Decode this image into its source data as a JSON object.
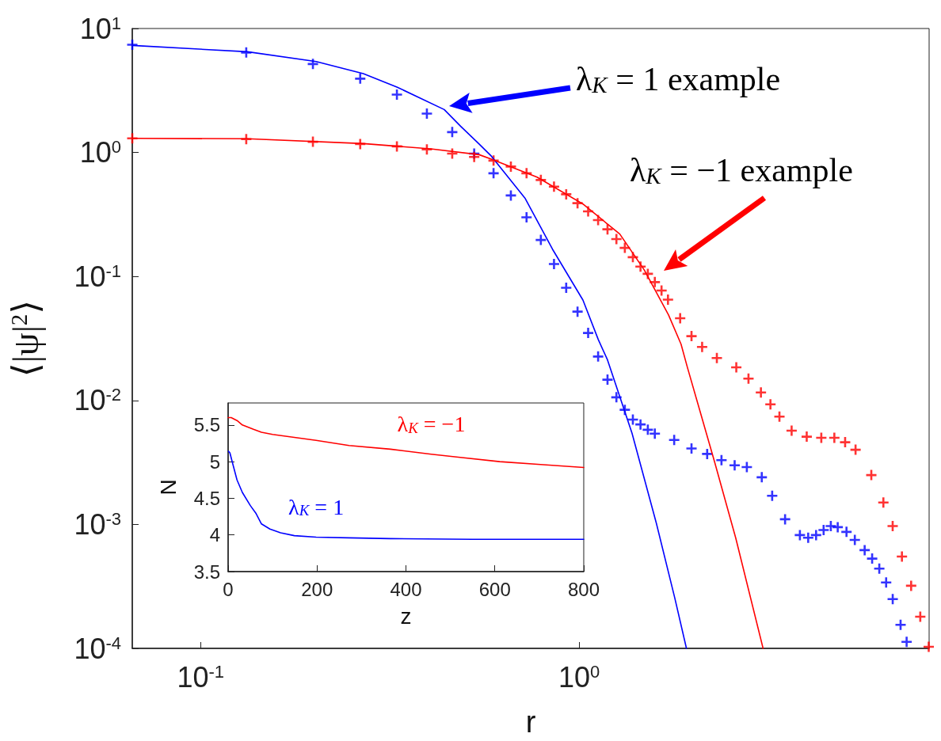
{
  "chart_data": [
    {
      "type": "line",
      "xlabel": "r",
      "ylabel": "⟨|ψ|$^{2}$⟩",
      "log": "xy",
      "grid": false,
      "xlim": [
        0.066,
        8.4
      ],
      "xticks": [
        {
          "value": 0.1,
          "label": "10$^{-1}$"
        },
        {
          "value": 1,
          "label": "10$^{0}$"
        }
      ],
      "ylim": [
        0.0001,
        10
      ],
      "yticks": [
        {
          "value": 0.0001,
          "label": "10$^{-4}$"
        },
        {
          "value": 0.001,
          "label": "10$^{-3}$"
        },
        {
          "value": 0.01,
          "label": "10$^{-2}$"
        },
        {
          "value": 0.1,
          "label": "10$^{-1}$"
        },
        {
          "value": 1,
          "label": "10$^{0}$"
        },
        {
          "value": 10,
          "label": "10$^{1}$"
        }
      ],
      "annotations": [
        "λ$_{K}$ = 1 example",
        "λ$_{K}$ = −1 example"
      ],
      "series": [
        {
          "type": "line",
          "color": "#0000ff",
          "marker": "none",
          "x": [
            0.066,
            0.133,
            0.202,
            0.269,
            0.33,
            0.44,
            0.486,
            0.544,
            0.586,
            0.719,
            0.85,
            1.023,
            1.123,
            1.188,
            1.379,
            1.599,
            1.789,
            1.92
          ],
          "values": [
            7.3,
            6.49,
            5.41,
            4.33,
            3.37,
            2.22,
            1.63,
            1.17,
            0.935,
            0.429,
            0.166,
            0.0645,
            0.031,
            0.0212,
            0.00544,
            0.00102,
            0.000254,
            0.0001
          ]
        },
        {
          "type": "scatter",
          "color": "#0000ff",
          "marker": "cross",
          "x": [
            0.066,
            0.132,
            0.198,
            0.264,
            0.33,
            0.396,
            0.462,
            0.528,
            0.594,
            0.66,
            0.726,
            0.792,
            0.858,
            0.924,
            0.99,
            1.056,
            1.122,
            1.188,
            1.254,
            1.32,
            1.386,
            1.452,
            1.518,
            1.584,
            1.782,
            1.98,
            2.178,
            2.376,
            2.574,
            2.772,
            3.036,
            3.234,
            3.498,
            3.828,
            4.026,
            4.224,
            4.422,
            4.62,
            4.818,
            5.082,
            5.346,
            5.676,
            5.94,
            6.204,
            6.468,
            6.732,
            7.062,
            7.326
          ],
          "values": [
            7.4,
            6.4,
            5.17,
            3.94,
            2.93,
            2.06,
            1.46,
            0.98,
            0.68,
            0.45,
            0.3,
            0.197,
            0.126,
            0.081,
            0.052,
            0.035,
            0.0226,
            0.0147,
            0.0106,
            0.0084,
            0.007,
            0.0064,
            0.0058,
            0.0054,
            0.0048,
            0.0041,
            0.0037,
            0.0033,
            0.003,
            0.0029,
            0.0024,
            0.0017,
            0.0011,
            0.00082,
            0.00078,
            0.00082,
            0.0009,
            0.00097,
            0.00095,
            0.00087,
            0.00075,
            0.00062,
            0.00053,
            0.00044,
            0.00034,
            0.00025,
            0.000155,
            0.000113
          ]
        },
        {
          "type": "line",
          "color": "#ff0000",
          "marker": "none",
          "x": [
            0.066,
            0.133,
            0.269,
            0.405,
            0.544,
            0.586,
            0.774,
            1.023,
            1.28,
            1.485,
            1.722,
            1.858,
            1.93,
            2.28,
            2.59,
            3.06
          ],
          "values": [
            1.3,
            1.29,
            1.18,
            1.07,
            0.96,
            0.885,
            0.633,
            0.384,
            0.22,
            0.113,
            0.0489,
            0.0284,
            0.0186,
            0.00317,
            0.00078,
            0.0001
          ]
        },
        {
          "type": "scatter",
          "color": "#ff0000",
          "marker": "cross",
          "x": [
            0.066,
            0.132,
            0.198,
            0.264,
            0.33,
            0.396,
            0.462,
            0.528,
            0.594,
            0.66,
            0.726,
            0.792,
            0.858,
            0.924,
            0.99,
            1.056,
            1.122,
            1.188,
            1.254,
            1.32,
            1.386,
            1.452,
            1.518,
            1.584,
            1.65,
            1.716,
            1.848,
            1.98,
            2.112,
            2.31,
            2.6,
            2.8,
            3.02,
            3.2,
            3.38,
            3.64,
            3.99,
            4.36,
            4.72,
            5.04,
            5.37,
            5.91,
            6.36,
            6.73,
            7.12,
            7.53,
            7.96,
            8.38
          ],
          "values": [
            1.3,
            1.28,
            1.22,
            1.17,
            1.12,
            1.06,
            0.98,
            0.92,
            0.86,
            0.77,
            0.68,
            0.6,
            0.53,
            0.46,
            0.39,
            0.335,
            0.285,
            0.24,
            0.2,
            0.17,
            0.143,
            0.12,
            0.105,
            0.09,
            0.077,
            0.065,
            0.046,
            0.033,
            0.027,
            0.022,
            0.0185,
            0.015,
            0.0116,
            0.0093,
            0.0074,
            0.0057,
            0.0051,
            0.005,
            0.005,
            0.0046,
            0.004,
            0.0025,
            0.0015,
            0.00097,
            0.00055,
            0.00032,
            0.00018,
            0.000103
          ]
        }
      ]
    },
    {
      "type": "line",
      "xlabel": "z",
      "ylabel": "N",
      "grid": false,
      "xlim": [
        0,
        800
      ],
      "xticks": [
        0,
        200,
        400,
        600,
        800
      ],
      "ylim": [
        3.5,
        5.8
      ],
      "yticks": [
        3.5,
        4,
        4.5,
        5,
        5.5
      ],
      "series": [
        {
          "name": "λ$_{K}$ = −1",
          "color": "#ff0000",
          "x": [
            0,
            7,
            20,
            32,
            57,
            75,
            100,
            149,
            198,
            272,
            365,
            457,
            518,
            611,
            703,
            800
          ],
          "values": [
            5.6,
            5.6,
            5.56,
            5.5,
            5.44,
            5.4,
            5.37,
            5.33,
            5.29,
            5.22,
            5.17,
            5.1,
            5.06,
            5.0,
            4.96,
            4.92
          ]
        },
        {
          "name": "λ$_{K}$ = 1",
          "color": "#0000ff",
          "x": [
            1,
            4,
            10,
            20,
            32,
            50,
            63,
            75,
            94,
            118,
            149,
            198,
            272,
            365,
            549,
            800
          ],
          "values": [
            5.14,
            5.12,
            4.98,
            4.75,
            4.58,
            4.4,
            4.29,
            4.15,
            4.08,
            4.03,
            3.99,
            3.97,
            3.96,
            3.95,
            3.94,
            3.94
          ]
        }
      ]
    }
  ]
}
